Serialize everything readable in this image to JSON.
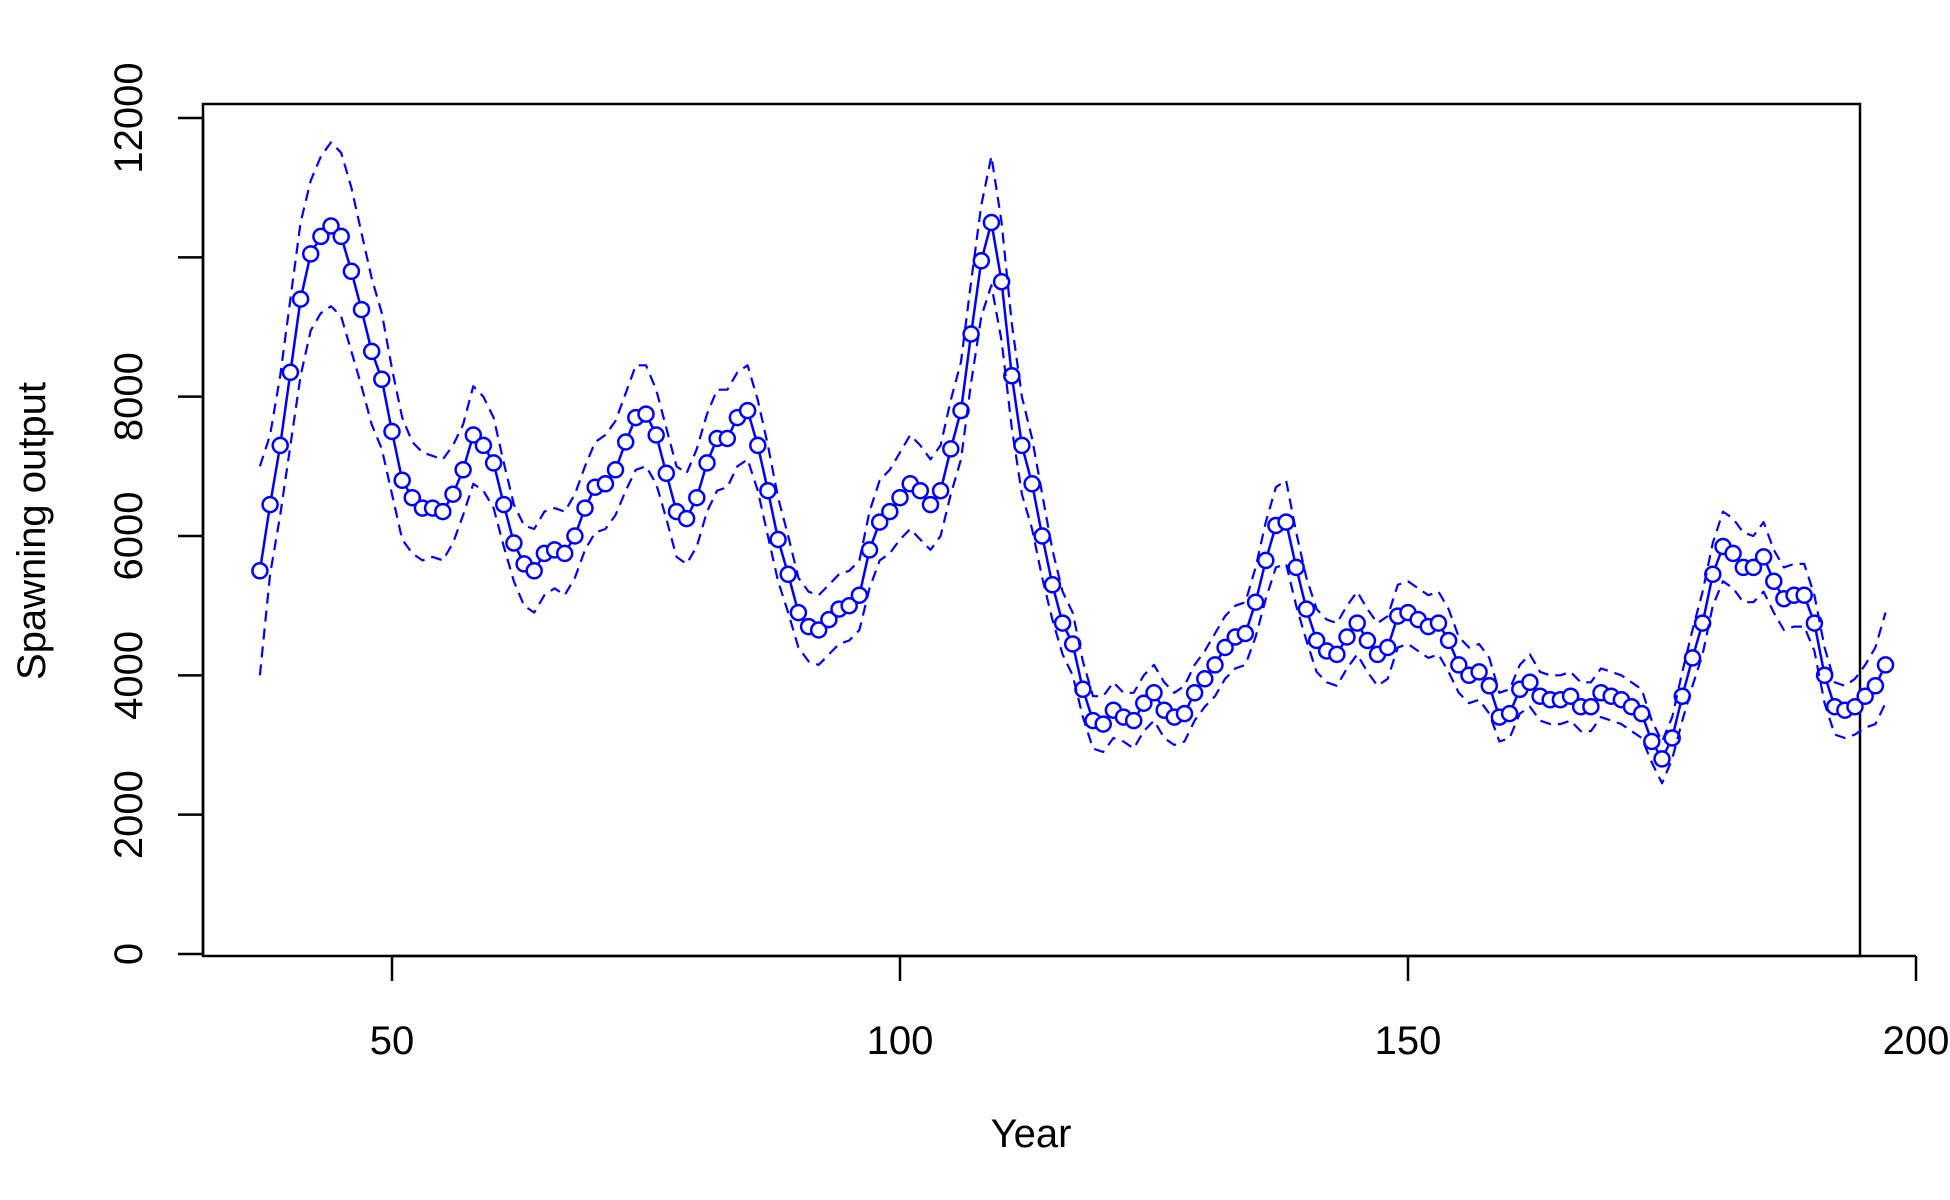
{
  "chart_data": {
    "type": "line",
    "xlabel": "Year",
    "ylabel": "Spawning output",
    "xlim": [
      30,
      205
    ],
    "ylim": [
      0,
      12200
    ],
    "x_ticks": [
      50,
      100,
      150,
      200
    ],
    "y_ticks": [
      0,
      2000,
      4000,
      6000,
      8000,
      10000,
      12000
    ],
    "y_tick_labels": [
      "0",
      "2000",
      "4000",
      "6000",
      "8000",
      "",
      "12000"
    ],
    "grid": false,
    "legend": "none",
    "series_color": "#0000FF",
    "series": [
      {
        "role": "estimate",
        "style": "solid line with open circles",
        "x": [
          37,
          38,
          39,
          40,
          41,
          42,
          43,
          44,
          45,
          46,
          47,
          48,
          49,
          50,
          51,
          52,
          53,
          54,
          55,
          56,
          57,
          58,
          59,
          60,
          61,
          62,
          63,
          64,
          65,
          66,
          67,
          68,
          69,
          70,
          71,
          72,
          73,
          74,
          75,
          76,
          77,
          78,
          79,
          80,
          81,
          82,
          83,
          84,
          85,
          86,
          87,
          88,
          89,
          90,
          91,
          92,
          93,
          94,
          95,
          96,
          97,
          98,
          99,
          100,
          101,
          102,
          103,
          104,
          105,
          106,
          107,
          108,
          109,
          110,
          111,
          112,
          113,
          114,
          115,
          116,
          117,
          118,
          119,
          120,
          121,
          122,
          123,
          124,
          125,
          126,
          127,
          128,
          129,
          130,
          131,
          132,
          133,
          134,
          135,
          136,
          137,
          138,
          139,
          140,
          141,
          142,
          143,
          144,
          145,
          146,
          147,
          148,
          149,
          150,
          151,
          152,
          153,
          154,
          155,
          156,
          157,
          158,
          159,
          160,
          161,
          162,
          163,
          164,
          165,
          166,
          167,
          168,
          169,
          170,
          171,
          172,
          173,
          174,
          175,
          176,
          177,
          178,
          179,
          180,
          181,
          182,
          183,
          184,
          185,
          186,
          187,
          188,
          189,
          190,
          191,
          192,
          193,
          194,
          195,
          196,
          197
        ],
        "y": [
          5500,
          6450,
          7300,
          8350,
          9400,
          10050,
          10300,
          10450,
          10300,
          9800,
          9250,
          8650,
          8250,
          7500,
          6800,
          6550,
          6400,
          6400,
          6350,
          6600,
          6950,
          7450,
          7300,
          7050,
          6450,
          5900,
          5600,
          5500,
          5750,
          5800,
          5750,
          6000,
          6400,
          6700,
          6750,
          6950,
          7350,
          7700,
          7750,
          7450,
          6900,
          6350,
          6250,
          6550,
          7050,
          7400,
          7400,
          7700,
          7800,
          7300,
          6650,
          5950,
          5450,
          4900,
          4700,
          4650,
          4800,
          4950,
          5000,
          5150,
          5800,
          6200,
          6350,
          6550,
          6750,
          6650,
          6450,
          6650,
          7250,
          7800,
          8900,
          9950,
          10500,
          9650,
          8300,
          7300,
          6750,
          6000,
          5300,
          4750,
          4450,
          3800,
          3350,
          3300,
          3500,
          3400,
          3350,
          3600,
          3750,
          3500,
          3400,
          3450,
          3750,
          3950,
          4150,
          4400,
          4550,
          4600,
          5050,
          5650,
          6150,
          6200,
          5550,
          4950,
          4500,
          4350,
          4300,
          4550,
          4750,
          4500,
          4300,
          4400,
          4850,
          4900,
          4800,
          4700,
          4750,
          4500,
          4150,
          4000,
          4050,
          3850,
          3400,
          3450,
          3800,
          3900,
          3700,
          3650,
          3650,
          3700,
          3550,
          3550,
          3750,
          3700,
          3650,
          3550,
          3450,
          3050,
          2800,
          3100,
          3700,
          4250,
          4750,
          5450,
          5850,
          5750,
          5550,
          5550,
          5700,
          5350,
          5100,
          5150,
          5150,
          4750,
          4000,
          3550,
          3500,
          3550,
          3700,
          3850,
          4150
        ]
      },
      {
        "role": "upper interval",
        "style": "dashed line",
        "x": [
          37,
          38,
          39,
          40,
          41,
          42,
          43,
          44,
          45,
          46,
          47,
          48,
          49,
          50,
          51,
          52,
          53,
          54,
          55,
          56,
          57,
          58,
          59,
          60,
          61,
          62,
          63,
          64,
          65,
          66,
          67,
          68,
          69,
          70,
          71,
          72,
          73,
          74,
          75,
          76,
          77,
          78,
          79,
          80,
          81,
          82,
          83,
          84,
          85,
          86,
          87,
          88,
          89,
          90,
          91,
          92,
          93,
          94,
          95,
          96,
          97,
          98,
          99,
          100,
          101,
          102,
          103,
          104,
          105,
          106,
          107,
          108,
          109,
          110,
          111,
          112,
          113,
          114,
          115,
          116,
          117,
          118,
          119,
          120,
          121,
          122,
          123,
          124,
          125,
          126,
          127,
          128,
          129,
          130,
          131,
          132,
          133,
          134,
          135,
          136,
          137,
          138,
          139,
          140,
          141,
          142,
          143,
          144,
          145,
          146,
          147,
          148,
          149,
          150,
          151,
          152,
          153,
          154,
          155,
          156,
          157,
          158,
          159,
          160,
          161,
          162,
          163,
          164,
          165,
          166,
          167,
          168,
          169,
          170,
          171,
          172,
          173,
          174,
          175,
          176,
          177,
          178,
          179,
          180,
          181,
          182,
          183,
          184,
          185,
          186,
          187,
          188,
          189,
          190,
          191,
          192,
          193,
          194,
          195,
          196,
          197
        ],
        "y": [
          7000,
          7450,
          8300,
          9400,
          10500,
          11100,
          11450,
          11650,
          11500,
          11000,
          10350,
          9700,
          9200,
          8400,
          7700,
          7350,
          7200,
          7150,
          7100,
          7300,
          7600,
          8150,
          8000,
          7700,
          7050,
          6450,
          6150,
          6100,
          6350,
          6400,
          6350,
          6600,
          7000,
          7350,
          7450,
          7650,
          8050,
          8450,
          8450,
          8100,
          7550,
          7000,
          6900,
          7250,
          7750,
          8100,
          8100,
          8350,
          8450,
          7950,
          7300,
          6550,
          6000,
          5400,
          5200,
          5150,
          5300,
          5450,
          5500,
          5650,
          6350,
          6800,
          6950,
          7200,
          7450,
          7300,
          7100,
          7300,
          7950,
          8500,
          9650,
          10750,
          11450,
          10500,
          9050,
          8000,
          7400,
          6600,
          5800,
          5200,
          4900,
          4200,
          3700,
          3700,
          3900,
          3750,
          3750,
          4000,
          4150,
          3900,
          3750,
          3850,
          4150,
          4350,
          4600,
          4850,
          5000,
          5050,
          5550,
          6200,
          6700,
          6800,
          6050,
          5400,
          4950,
          4800,
          4750,
          5000,
          5200,
          4950,
          4750,
          4850,
          5300,
          5350,
          5250,
          5150,
          5200,
          4950,
          4550,
          4400,
          4450,
          4250,
          3750,
          3800,
          4150,
          4300,
          4050,
          4000,
          4000,
          4050,
          3900,
          3900,
          4100,
          4050,
          4000,
          3900,
          3800,
          3350,
          3050,
          3400,
          4050,
          4650,
          5200,
          5900,
          6350,
          6250,
          6050,
          6000,
          6200,
          5800,
          5550,
          5600,
          5600,
          5150,
          4400,
          3900,
          3850,
          3950,
          4150,
          4400,
          4900
        ]
      },
      {
        "role": "lower interval",
        "style": "dashed line",
        "x": [
          37,
          38,
          39,
          40,
          41,
          42,
          43,
          44,
          45,
          46,
          47,
          48,
          49,
          50,
          51,
          52,
          53,
          54,
          55,
          56,
          57,
          58,
          59,
          60,
          61,
          62,
          63,
          64,
          65,
          66,
          67,
          68,
          69,
          70,
          71,
          72,
          73,
          74,
          75,
          76,
          77,
          78,
          79,
          80,
          81,
          82,
          83,
          84,
          85,
          86,
          87,
          88,
          89,
          90,
          91,
          92,
          93,
          94,
          95,
          96,
          97,
          98,
          99,
          100,
          101,
          102,
          103,
          104,
          105,
          106,
          107,
          108,
          109,
          110,
          111,
          112,
          113,
          114,
          115,
          116,
          117,
          118,
          119,
          120,
          121,
          122,
          123,
          124,
          125,
          126,
          127,
          128,
          129,
          130,
          131,
          132,
          133,
          134,
          135,
          136,
          137,
          138,
          139,
          140,
          141,
          142,
          143,
          144,
          145,
          146,
          147,
          148,
          149,
          150,
          151,
          152,
          153,
          154,
          155,
          156,
          157,
          158,
          159,
          160,
          161,
          162,
          163,
          164,
          165,
          166,
          167,
          168,
          169,
          170,
          171,
          172,
          173,
          174,
          175,
          176,
          177,
          178,
          179,
          180,
          181,
          182,
          183,
          184,
          185,
          186,
          187,
          188,
          189,
          190,
          191,
          192,
          193,
          194,
          195,
          196,
          197
        ],
        "y": [
          4000,
          5450,
          6300,
          7300,
          8300,
          8950,
          9200,
          9300,
          9150,
          8650,
          8150,
          7600,
          7250,
          6600,
          5950,
          5750,
          5650,
          5700,
          5650,
          5900,
          6300,
          6750,
          6650,
          6400,
          5850,
          5350,
          5000,
          4900,
          5150,
          5250,
          5150,
          5400,
          5800,
          6050,
          6100,
          6300,
          6650,
          6950,
          7000,
          6750,
          6250,
          5700,
          5600,
          5850,
          6350,
          6650,
          6700,
          7000,
          7100,
          6650,
          6000,
          5350,
          4900,
          4400,
          4200,
          4150,
          4300,
          4450,
          4500,
          4650,
          5250,
          5650,
          5750,
          5950,
          6100,
          5950,
          5800,
          6000,
          6600,
          7100,
          8200,
          9150,
          9600,
          8800,
          7550,
          6600,
          6100,
          5400,
          4800,
          4300,
          4000,
          3400,
          2950,
          2900,
          3100,
          3050,
          2950,
          3200,
          3350,
          3100,
          3000,
          3050,
          3350,
          3550,
          3700,
          3950,
          4100,
          4150,
          4550,
          5100,
          5550,
          5600,
          5000,
          4500,
          4050,
          3900,
          3850,
          4100,
          4300,
          4050,
          3850,
          3950,
          4400,
          4450,
          4350,
          4250,
          4300,
          4050,
          3750,
          3600,
          3650,
          3450,
          3050,
          3100,
          3450,
          3550,
          3350,
          3300,
          3300,
          3350,
          3200,
          3200,
          3400,
          3350,
          3300,
          3200,
          3100,
          2750,
          2450,
          2800,
          3350,
          3850,
          4300,
          5000,
          5350,
          5250,
          5050,
          5050,
          5200,
          4900,
          4650,
          4700,
          4700,
          4350,
          3600,
          3150,
          3100,
          3150,
          3250,
          3300,
          3600
        ]
      }
    ]
  }
}
